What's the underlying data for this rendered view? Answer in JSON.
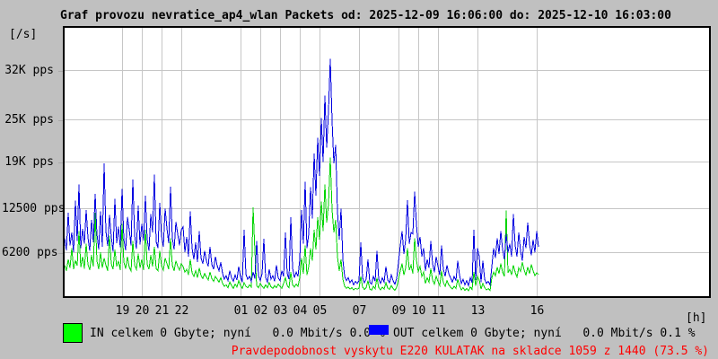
{
  "title": "Graf provozu nevratice_ap4_wlan Packets od: 2025-12-09 16:06:00 do: 2025-12-10 16:03:00",
  "y_unit": "[/s]",
  "x_unit": "[h]",
  "legend": {
    "in_label": "IN celkem 0 Gbyte; nyní   0.0 Mbit/s 0.0 %",
    "in_swatch_color": "#00ff00",
    "out_label": "OUT celkem 0 Gbyte; nyní   0.0 Mbit/s 0.1 %",
    "out_swatch_color": "#0000ff"
  },
  "status_line": {
    "text": "Pravdepodobnost vyskytu E220 KULATAK na skladce 1059 z 1440 (73.5 %)",
    "color": "#ff0000"
  },
  "colors": {
    "background": "#c0c0c0",
    "plot_background": "#ffffff",
    "grid": "#c6c6c6",
    "in_line": "#00d400",
    "out_line": "#0000e0"
  },
  "chart_data": {
    "type": "line",
    "title": "Graf provozu nevratice_ap4_wlan Packets od: 2025-12-09 16:06:00 do: 2025-12-10 16:03:00",
    "x_start": "2025-12-09 16:06:00",
    "x_end": "2025-12-10 16:03:00",
    "x_span_hours": 24,
    "xlabel": "[h]",
    "ylabel": "[/s]",
    "ylim": [
      0,
      38000
    ],
    "grid": true,
    "legend_position": "bottom",
    "yticks": [
      {
        "label": "32K pps",
        "value": 32000
      },
      {
        "label": "25K pps",
        "value": 25000
      },
      {
        "label": "19K pps",
        "value": 19000
      },
      {
        "label": "12500 pps",
        "value": 12500
      },
      {
        "label": "6200 pps",
        "value": 6200
      }
    ],
    "xticks": [
      {
        "label": "19",
        "hour": 19
      },
      {
        "label": "20",
        "hour": 20
      },
      {
        "label": "21",
        "hour": 21
      },
      {
        "label": "22",
        "hour": 22
      },
      {
        "label": "01",
        "hour": 1
      },
      {
        "label": "02",
        "hour": 2
      },
      {
        "label": "03",
        "hour": 3
      },
      {
        "label": "04",
        "hour": 4
      },
      {
        "label": "05",
        "hour": 5
      },
      {
        "label": "07",
        "hour": 7
      },
      {
        "label": "09",
        "hour": 9
      },
      {
        "label": "10",
        "hour": 10
      },
      {
        "label": "11",
        "hour": 11
      },
      {
        "label": "13",
        "hour": 13
      },
      {
        "label": "16",
        "hour": 16
      }
    ],
    "series": [
      {
        "name": "IN",
        "unit": "pps",
        "color": "#00d400",
        "values": [
          4400,
          3600,
          5200,
          4000,
          6800,
          3800,
          5000,
          4300,
          9200,
          4100,
          5600,
          3900,
          7400,
          4500,
          3700,
          5800,
          4200,
          11800,
          5000,
          3800,
          6200,
          4000,
          5400,
          4400,
          3600,
          8600,
          4600,
          3800,
          6600,
          4200,
          5000,
          3700,
          10200,
          4800,
          3900,
          5600,
          4100,
          3600,
          7800,
          4400,
          3800,
          6000,
          4000,
          5200,
          3700,
          9400,
          4500,
          3800,
          5800,
          4200,
          7000,
          3900,
          3600,
          6400,
          4300,
          3700,
          5400,
          4600,
          3800,
          8200,
          4400,
          3600,
          5000,
          4200,
          3700,
          4600,
          4200,
          3400,
          3800,
          3000,
          5200,
          3300,
          2800,
          3600,
          2600,
          4000,
          2900,
          2500,
          3200,
          2700,
          2300,
          3400,
          2500,
          2100,
          2800,
          2400,
          2000,
          2600,
          1800,
          1400,
          1600,
          1200,
          2000,
          1500,
          1100,
          1700,
          1300,
          2200,
          1500,
          1100,
          1900,
          1400,
          1200,
          1600,
          1300,
          12600,
          6400,
          1500,
          1200,
          1800,
          1400,
          1100,
          1600,
          1200,
          1900,
          1300,
          1100,
          1500,
          1200,
          1700,
          1400,
          1100,
          1800,
          2600,
          1500,
          1200,
          3400,
          1600,
          1300,
          1700,
          1400,
          2600,
          5400,
          3200,
          7200,
          3000,
          4200,
          6800,
          5000,
          9400,
          6600,
          11200,
          8000,
          13400,
          9200,
          15800,
          10400,
          13000,
          19600,
          12200,
          9000,
          10800,
          5600,
          3600,
          5200,
          2400,
          1400,
          1100,
          1300,
          1000,
          1200,
          900,
          1100,
          1000,
          1100,
          2800,
          1300,
          950,
          1200,
          2200,
          1000,
          850,
          1400,
          1050,
          2600,
          1200,
          900,
          1300,
          1000,
          1900,
          1150,
          950,
          1500,
          1100,
          850,
          1250,
          2400,
          3600,
          4600,
          3000,
          4000,
          6800,
          3700,
          4400,
          3200,
          8200,
          5100,
          3500,
          4200,
          2800,
          3400,
          1800,
          2600,
          2000,
          3900,
          2300,
          1700,
          2800,
          2100,
          1500,
          3600,
          1900,
          1400,
          2200,
          1600,
          1300,
          1000,
          1400,
          1100,
          2400,
          1500,
          900,
          1200,
          800,
          1100,
          750,
          1300,
          950,
          3400,
          1500,
          2800,
          2300,
          1000,
          1800,
          1200,
          900,
          1050,
          800,
          2600,
          3400,
          2900,
          4100,
          3200,
          4600,
          3400,
          2800,
          12100,
          3300,
          3800,
          3000,
          4400,
          3400,
          2700,
          4000,
          3500,
          4800,
          3700,
          3000,
          4100,
          3200,
          4500,
          3600,
          2900,
          3300,
          3100
        ]
      },
      {
        "name": "OUT",
        "unit": "pps",
        "color": "#0000e0",
        "values": [
          8200,
          6500,
          11800,
          7200,
          9000,
          6200,
          13500,
          7800,
          15800,
          6800,
          9500,
          7400,
          12200,
          8300,
          6400,
          10800,
          7600,
          14500,
          8800,
          6600,
          12000,
          7000,
          18800,
          9200,
          7100,
          11500,
          8400,
          6300,
          13800,
          7500,
          9800,
          6900,
          15200,
          8000,
          6500,
          11200,
          9400,
          7200,
          16500,
          8600,
          6700,
          12800,
          7300,
          10200,
          7900,
          14200,
          8100,
          6400,
          11600,
          9000,
          17200,
          7700,
          6800,
          13200,
          8500,
          7000,
          12400,
          9600,
          7500,
          15500,
          8200,
          6600,
          10500,
          8800,
          7200,
          9400,
          9800,
          6200,
          8400,
          5600,
          12000,
          6800,
          5200,
          7600,
          4800,
          9200,
          5400,
          4600,
          6400,
          5000,
          4200,
          7000,
          4500,
          3800,
          5600,
          4300,
          3600,
          4800,
          3200,
          2400,
          2900,
          2200,
          3600,
          2600,
          2100,
          3000,
          2300,
          4200,
          2700,
          2000,
          9400,
          3100,
          2400,
          2800,
          2100,
          3400,
          2500,
          7800,
          2900,
          2200,
          3200,
          8100,
          2600,
          2000,
          3800,
          2400,
          2900,
          2100,
          4400,
          2600,
          2200,
          3600,
          2800,
          9000,
          3200,
          2400,
          11200,
          4000,
          2600,
          3400,
          2800,
          5200,
          12200,
          7400,
          16200,
          6800,
          8800,
          15400,
          11000,
          20200,
          14200,
          22400,
          17000,
          25200,
          19000,
          28400,
          21000,
          26200,
          33600,
          24800,
          18800,
          21400,
          12000,
          8000,
          12400,
          5200,
          2800,
          2200,
          2600,
          1900,
          2300,
          1600,
          2100,
          1800,
          2200,
          7600,
          2600,
          1900,
          2400,
          5200,
          2000,
          1700,
          2800,
          2100,
          6400,
          2400,
          1800,
          2600,
          2000,
          4200,
          2300,
          1900,
          3000,
          2200,
          1700,
          2500,
          4800,
          7200,
          9200,
          6000,
          8000,
          13600,
          7400,
          9000,
          8800,
          14800,
          10200,
          7000,
          8400,
          5600,
          6800,
          3600,
          5200,
          4000,
          7800,
          4600,
          3400,
          5600,
          4200,
          3000,
          7200,
          3800,
          2800,
          4400,
          3200,
          2600,
          2000,
          2800,
          2200,
          5000,
          3000,
          1800,
          2400,
          1600,
          2200,
          1500,
          2600,
          1900,
          9400,
          2300,
          6800,
          5600,
          2000,
          5000,
          2400,
          1800,
          2100,
          1600,
          4200,
          6800,
          5400,
          8200,
          6000,
          9200,
          6600,
          5200,
          8800,
          6200,
          7400,
          5600,
          11600,
          7200,
          5600,
          9000,
          6400,
          5000,
          8400,
          6800,
          10400,
          7400,
          5800,
          8000,
          6200,
          9200,
          7000
        ]
      }
    ]
  }
}
